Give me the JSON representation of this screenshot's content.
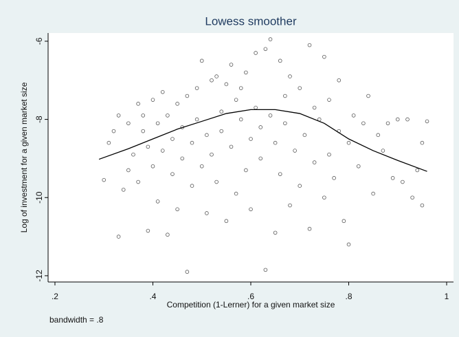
{
  "chart_data": {
    "type": "scatter",
    "title": "Lowess smoother",
    "x_label": "Competition (1-Lerner) for a given market size",
    "y_label": "Log of investment for a given market size",
    "note": "bandwidth = .8",
    "xlim": [
      0.186,
      1.014
    ],
    "ylim": [
      -12.16,
      -5.79
    ],
    "xticks": [
      {
        "value": 0.2,
        "label": ".2"
      },
      {
        "value": 0.4,
        "label": ".4"
      },
      {
        "value": 0.6,
        "label": ".6"
      },
      {
        "value": 0.8,
        "label": ".8"
      },
      1
    ],
    "yticks": [
      -6,
      -8,
      -10,
      -12
    ],
    "grid": false,
    "series": [
      {
        "type": "scatter",
        "color": "#555555",
        "x": [
          0.3,
          0.31,
          0.32,
          0.33,
          0.33,
          0.34,
          0.35,
          0.35,
          0.36,
          0.37,
          0.37,
          0.38,
          0.38,
          0.39,
          0.39,
          0.4,
          0.4,
          0.41,
          0.41,
          0.42,
          0.42,
          0.43,
          0.43,
          0.44,
          0.44,
          0.45,
          0.45,
          0.46,
          0.46,
          0.47,
          0.47,
          0.48,
          0.48,
          0.49,
          0.49,
          0.5,
          0.5,
          0.51,
          0.51,
          0.52,
          0.52,
          0.53,
          0.53,
          0.54,
          0.54,
          0.55,
          0.55,
          0.56,
          0.56,
          0.57,
          0.57,
          0.58,
          0.58,
          0.59,
          0.59,
          0.6,
          0.6,
          0.61,
          0.61,
          0.62,
          0.62,
          0.63,
          0.63,
          0.64,
          0.64,
          0.65,
          0.65,
          0.66,
          0.66,
          0.67,
          0.67,
          0.68,
          0.68,
          0.69,
          0.7,
          0.7,
          0.71,
          0.72,
          0.72,
          0.73,
          0.73,
          0.74,
          0.75,
          0.75,
          0.76,
          0.76,
          0.77,
          0.78,
          0.78,
          0.79,
          0.8,
          0.8,
          0.81,
          0.82,
          0.83,
          0.84,
          0.85,
          0.86,
          0.87,
          0.88,
          0.89,
          0.9,
          0.91,
          0.92,
          0.93,
          0.94,
          0.95,
          0.95,
          0.96
        ],
        "values": [
          -9.55,
          -8.6,
          -8.3,
          -7.9,
          -11.0,
          -9.8,
          -8.1,
          -9.3,
          -8.9,
          -7.6,
          -9.6,
          -8.3,
          -7.9,
          -10.85,
          -8.7,
          -7.5,
          -9.2,
          -8.1,
          -10.1,
          -7.3,
          -8.8,
          -10.95,
          -7.9,
          -8.5,
          -9.4,
          -7.6,
          -10.3,
          -8.2,
          -9.0,
          -11.9,
          -7.4,
          -8.6,
          -9.7,
          -7.2,
          -8.0,
          -6.5,
          -9.2,
          -8.4,
          -10.4,
          -7.0,
          -8.9,
          -6.9,
          -9.6,
          -7.8,
          -8.3,
          -7.1,
          -10.6,
          -6.6,
          -8.7,
          -7.5,
          -9.9,
          -8.0,
          -7.2,
          -9.3,
          -6.8,
          -8.5,
          -10.3,
          -6.3,
          -7.7,
          -9.0,
          -8.2,
          -11.85,
          -6.2,
          -5.95,
          -7.9,
          -10.9,
          -8.6,
          -6.5,
          -9.4,
          -7.4,
          -8.1,
          -10.2,
          -6.9,
          -8.8,
          -7.2,
          -9.7,
          -8.4,
          -6.1,
          -10.8,
          -7.7,
          -9.1,
          -8.0,
          -6.4,
          -10.0,
          -7.5,
          -8.9,
          -9.5,
          -7.0,
          -8.3,
          -10.6,
          -11.2,
          -8.6,
          -7.9,
          -9.2,
          -8.1,
          -7.4,
          -9.9,
          -8.4,
          -8.8,
          -8.1,
          -9.5,
          -8.0,
          -9.6,
          -8.0,
          -10.0,
          -9.3,
          -10.2,
          -8.6,
          -8.05
        ]
      },
      {
        "type": "line",
        "color": "#000000",
        "x": [
          0.29,
          0.35,
          0.4,
          0.45,
          0.5,
          0.55,
          0.6,
          0.65,
          0.7,
          0.75,
          0.8,
          0.85,
          0.9,
          0.96
        ],
        "values": [
          -9.02,
          -8.75,
          -8.5,
          -8.25,
          -8.05,
          -7.85,
          -7.75,
          -7.75,
          -7.85,
          -8.1,
          -8.5,
          -8.8,
          -9.05,
          -9.33
        ]
      }
    ]
  }
}
